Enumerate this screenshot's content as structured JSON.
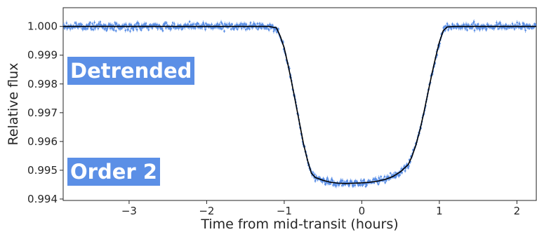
{
  "chart_data": {
    "type": "scatter",
    "title": "",
    "xlabel": "Time from mid-transit (hours)",
    "ylabel": "Relative flux",
    "xlim": [
      -3.85,
      2.25
    ],
    "ylim": [
      0.99395,
      1.00065
    ],
    "x_ticks": [
      -3,
      -2,
      -1,
      0,
      1,
      2
    ],
    "x_tick_labels": [
      "−3",
      "−2",
      "−1",
      "0",
      "1",
      "2"
    ],
    "y_ticks": [
      0.994,
      0.995,
      0.996,
      0.997,
      0.998,
      0.999,
      1.0
    ],
    "y_tick_labels": [
      "0.994",
      "0.995",
      "0.996",
      "0.997",
      "0.998",
      "0.999",
      "1.000"
    ],
    "grid": false,
    "annotations": [
      "Detrended",
      "Order 2"
    ],
    "series": [
      {
        "kind": "data-with-errorbars",
        "color": "#5b8fe6",
        "note_range": "observed points spread around the model with scatter of about 0.0001",
        "x": [
          -3.8,
          -3.6,
          -3.4,
          -3.2,
          -3.0,
          -2.8,
          -2.6,
          -2.4,
          -2.2,
          -2.0,
          -1.8,
          -1.6,
          -1.4,
          -1.2,
          -1.1,
          -1.05,
          -1.0,
          -0.95,
          -0.9,
          -0.85,
          -0.8,
          -0.75,
          -0.7,
          -0.65,
          -0.6,
          -0.5,
          -0.4,
          -0.3,
          -0.2,
          -0.1,
          0.0,
          0.1,
          0.2,
          0.3,
          0.4,
          0.5,
          0.6,
          0.65,
          0.7,
          0.75,
          0.8,
          0.85,
          0.9,
          0.95,
          1.0,
          1.05,
          1.1,
          1.2,
          1.4,
          1.6,
          1.8,
          2.0,
          2.2
        ],
        "y": [
          1.00002,
          0.99998,
          1.00005,
          0.99997,
          1.00003,
          0.99999,
          1.00004,
          0.99998,
          1.00002,
          1.00001,
          0.99996,
          1.00003,
          1.0,
          1.00001,
          0.99995,
          0.99965,
          0.99925,
          0.99865,
          0.998,
          0.9973,
          0.9966,
          0.9959,
          0.99535,
          0.9949,
          0.99475,
          0.99465,
          0.99458,
          0.99455,
          0.99454,
          0.99455,
          0.99456,
          0.99458,
          0.99462,
          0.99468,
          0.99478,
          0.99495,
          0.9952,
          0.9955,
          0.9959,
          0.9964,
          0.997,
          0.99765,
          0.9983,
          0.9989,
          0.99945,
          0.99985,
          0.99998,
          1.00002,
          1.00003,
          0.99998,
          1.00001,
          0.99999,
          1.00002
        ]
      },
      {
        "kind": "model-line",
        "color": "#000000",
        "x": [
          -3.85,
          -1.2,
          -1.1,
          -1.05,
          -1.0,
          -0.95,
          -0.9,
          -0.85,
          -0.8,
          -0.75,
          -0.7,
          -0.65,
          -0.6,
          -0.5,
          -0.4,
          -0.3,
          -0.2,
          -0.1,
          0.0,
          0.1,
          0.2,
          0.3,
          0.4,
          0.5,
          0.6,
          0.65,
          0.7,
          0.75,
          0.8,
          0.85,
          0.9,
          0.95,
          1.0,
          1.05,
          1.1,
          1.2,
          2.25
        ],
        "y": [
          1.0,
          1.0,
          0.99995,
          0.99965,
          0.99925,
          0.99865,
          0.998,
          0.9973,
          0.9966,
          0.9959,
          0.99535,
          0.9949,
          0.99475,
          0.99465,
          0.99458,
          0.99455,
          0.99454,
          0.99455,
          0.99456,
          0.99458,
          0.99462,
          0.99468,
          0.99478,
          0.99495,
          0.9952,
          0.9955,
          0.9959,
          0.9964,
          0.997,
          0.99765,
          0.9983,
          0.9989,
          0.99945,
          0.99985,
          0.99998,
          1.0,
          1.0
        ]
      }
    ],
    "colors": {
      "data": "#5b8fe6",
      "model": "#000000",
      "badge_bg": "#5b8fe6",
      "badge_text": "#ffffff"
    }
  }
}
